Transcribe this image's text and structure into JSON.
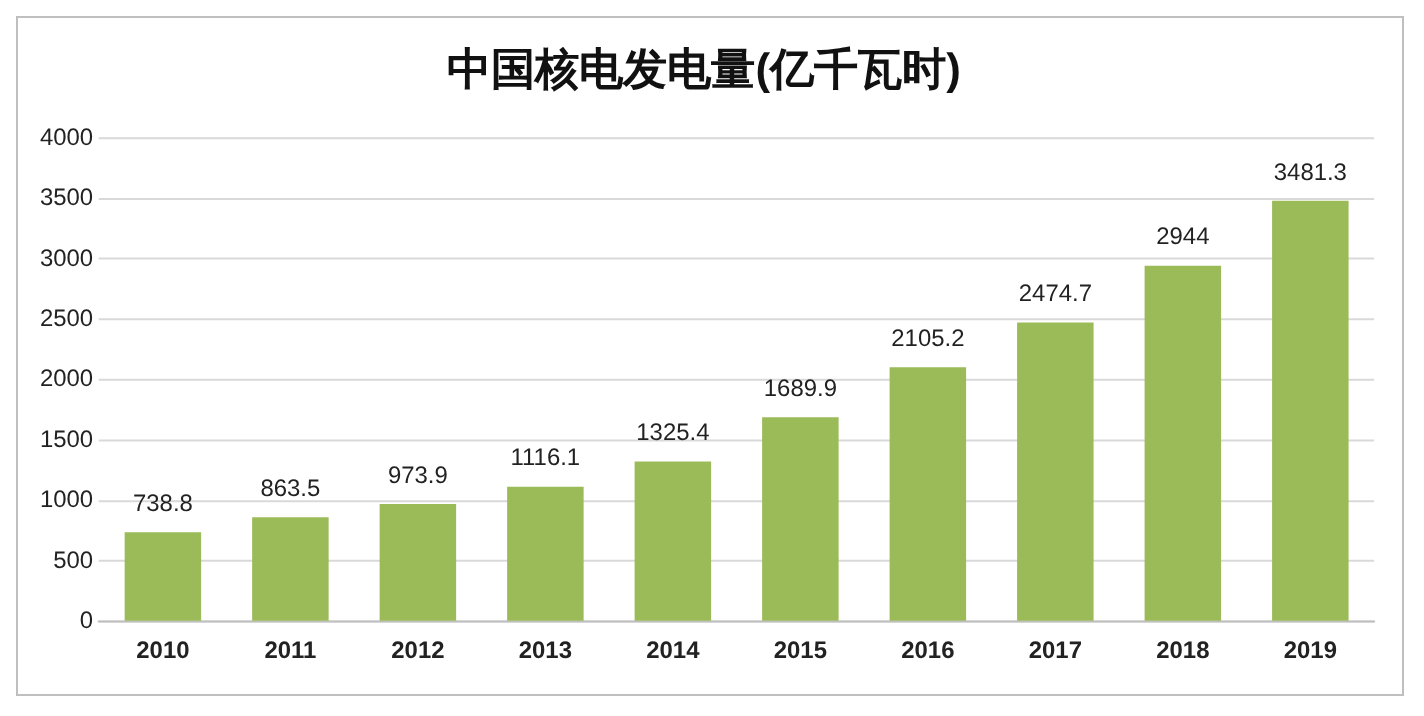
{
  "chart_data": {
    "type": "bar",
    "title": "中国核电发电量(亿千瓦时)",
    "categories": [
      "2010",
      "2011",
      "2012",
      "2013",
      "2014",
      "2015",
      "2016",
      "2017",
      "2018",
      "2019"
    ],
    "values": [
      738.8,
      863.5,
      973.9,
      1116.1,
      1325.4,
      1689.9,
      2105.2,
      2474.7,
      2944,
      3481.3
    ],
    "color": "#9bbb59",
    "ylim": [
      0,
      4000
    ],
    "yticks": [
      0,
      500,
      1000,
      1500,
      2000,
      2500,
      3000,
      3500,
      4000
    ],
    "grid": "y",
    "data_labels": true,
    "legend": false
  }
}
